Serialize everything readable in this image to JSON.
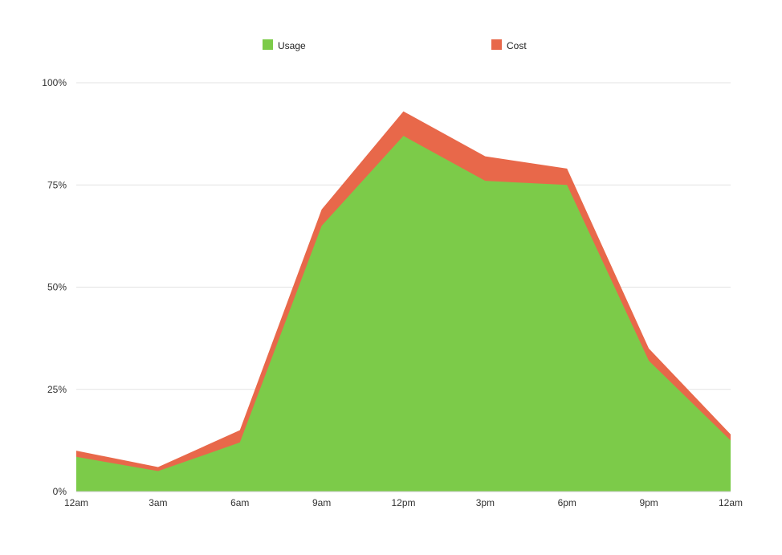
{
  "chart_data": {
    "type": "area",
    "title": "",
    "x": [
      "12am",
      "3am",
      "6am",
      "9am",
      "12pm",
      "3pm",
      "6pm",
      "9pm",
      "12am"
    ],
    "series": [
      {
        "name": "Usage",
        "color": "#7ccb49",
        "values": [
          8.5,
          5,
          12,
          65,
          87,
          76,
          75,
          32,
          12.5
        ]
      },
      {
        "name": "Cost",
        "color": "#e8684a",
        "values": [
          10,
          6,
          15,
          69,
          93,
          82,
          79,
          35,
          14
        ]
      }
    ],
    "ylim": [
      0,
      100
    ],
    "yticks": [
      "0%",
      "25%",
      "50%",
      "75%",
      "100%"
    ],
    "grid": true,
    "legend_position": "top",
    "xlabel": "",
    "ylabel": "",
    "colors": {
      "grid_line": "#e3e3e3",
      "axis_line": "#c9c9c9",
      "tick_text": "#333333",
      "background": "#ffffff"
    }
  }
}
